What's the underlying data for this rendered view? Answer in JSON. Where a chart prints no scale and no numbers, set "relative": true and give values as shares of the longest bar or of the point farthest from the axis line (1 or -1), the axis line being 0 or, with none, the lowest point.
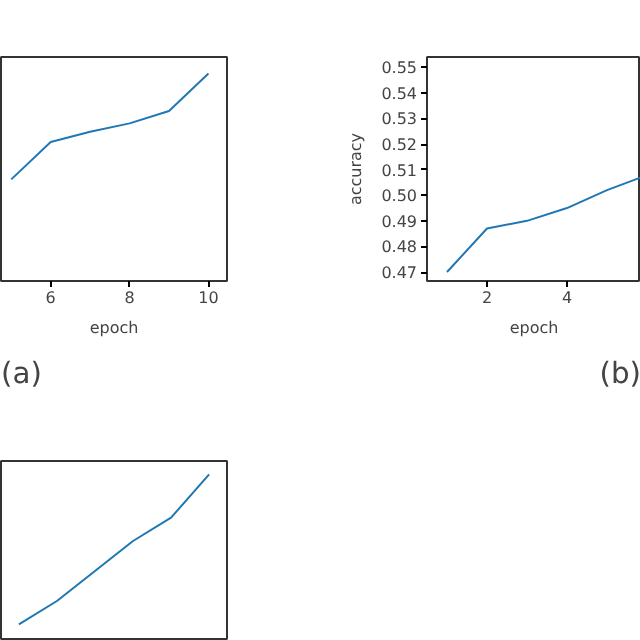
{
  "chart_data": [
    {
      "type": "line",
      "relative": true,
      "x": [
        5,
        6,
        7,
        8,
        9,
        10
      ],
      "values": [
        0.49,
        0.67,
        0.72,
        0.76,
        0.82,
        1
      ],
      "color": "#1f77b4",
      "xlim": [
        4.74,
        10.47
      ],
      "xticks": [
        6,
        8,
        10
      ],
      "xlabel": "epoch",
      "tick_labels": "x",
      "annotations": [
        "(a)"
      ]
    },
    {
      "type": "line",
      "x": [
        1,
        2,
        3,
        4,
        5,
        5.85
      ],
      "values": [
        0.47,
        0.487,
        0.49,
        0.495,
        0.502,
        0.507
      ],
      "color": "#1f77b4",
      "xlim": [
        0.5,
        5.85
      ],
      "ylim": [
        0.4665,
        0.554
      ],
      "xticks": [
        2,
        4
      ],
      "yticks": [
        {
          "value": 0.47,
          "label": "0.47"
        },
        {
          "value": 0.48,
          "label": "0.48"
        },
        {
          "value": 0.49,
          "label": "0.49"
        },
        {
          "value": 0.5,
          "label": "0.50"
        },
        {
          "value": 0.51,
          "label": "0.51"
        },
        {
          "value": 0.52,
          "label": "0.52"
        },
        {
          "value": 0.53,
          "label": "0.53"
        },
        {
          "value": 0.54,
          "label": "0.54"
        },
        {
          "value": 0.55,
          "label": "0.55"
        }
      ],
      "xlabel": "epoch",
      "ylabel": "accuracy",
      "annotations": [
        "(b)"
      ]
    },
    {
      "type": "line",
      "relative": true,
      "categories": [
        null,
        null,
        null,
        null,
        null,
        null
      ],
      "values": [
        0.1,
        0.24,
        0.42,
        0.6,
        0.74,
        1
      ],
      "color": "#1f77b4",
      "tick_labels": false
    }
  ]
}
